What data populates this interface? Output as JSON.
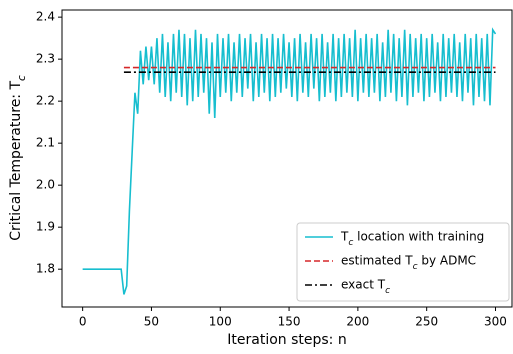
{
  "chart_data": {
    "type": "line",
    "xlabel": "Iteration steps: n",
    "ylabel": "Critical Temperature: Tc",
    "xlim": [
      -15,
      312
    ],
    "ylim": [
      1.71,
      2.417
    ],
    "xticks": [
      0,
      50,
      100,
      150,
      200,
      250,
      300
    ],
    "yticks": [
      1.8,
      1.9,
      {
        "value": 2,
        "label": "2.0"
      },
      2.1,
      2.2,
      2.3,
      2.4
    ],
    "legend": "lower right",
    "series": [
      {
        "name": "Tc location with training",
        "color": "#17becf",
        "dash": "solid",
        "x": [
          0,
          2,
          4,
          6,
          8,
          10,
          12,
          14,
          16,
          18,
          20,
          22,
          24,
          26,
          28,
          30,
          32,
          34,
          36,
          38,
          40,
          42,
          44,
          46,
          48,
          50,
          52,
          54,
          56,
          58,
          60,
          62,
          64,
          66,
          68,
          70,
          72,
          74,
          76,
          78,
          80,
          82,
          84,
          86,
          88,
          90,
          92,
          94,
          96,
          98,
          100,
          102,
          104,
          106,
          108,
          110,
          112,
          114,
          116,
          118,
          120,
          122,
          124,
          126,
          128,
          130,
          132,
          134,
          136,
          138,
          140,
          142,
          144,
          146,
          148,
          150,
          152,
          154,
          156,
          158,
          160,
          162,
          164,
          166,
          168,
          170,
          172,
          174,
          176,
          178,
          180,
          182,
          184,
          186,
          188,
          190,
          192,
          194,
          196,
          198,
          200,
          202,
          204,
          206,
          208,
          210,
          212,
          214,
          216,
          218,
          220,
          222,
          224,
          226,
          228,
          230,
          232,
          234,
          236,
          238,
          240,
          242,
          244,
          246,
          248,
          250,
          252,
          254,
          256,
          258,
          260,
          262,
          264,
          266,
          268,
          270,
          272,
          274,
          276,
          278,
          280,
          282,
          284,
          286,
          288,
          290,
          292,
          294,
          296,
          298,
          300
        ],
        "values": [
          1.8,
          1.8,
          1.8,
          1.8,
          1.8,
          1.8,
          1.8,
          1.8,
          1.8,
          1.8,
          1.8,
          1.8,
          1.8,
          1.8,
          1.8,
          1.74,
          1.76,
          1.94,
          2.08,
          2.22,
          2.17,
          2.32,
          2.24,
          2.33,
          2.25,
          2.33,
          2.24,
          2.35,
          2.22,
          2.36,
          2.21,
          2.34,
          2.2,
          2.36,
          2.22,
          2.37,
          2.21,
          2.36,
          2.19,
          2.35,
          2.2,
          2.37,
          2.21,
          2.36,
          2.22,
          2.35,
          2.17,
          2.34,
          2.16,
          2.36,
          2.21,
          2.35,
          2.22,
          2.36,
          2.2,
          2.34,
          2.22,
          2.36,
          2.21,
          2.35,
          2.23,
          2.36,
          2.2,
          2.34,
          2.21,
          2.36,
          2.22,
          2.35,
          2.2,
          2.36,
          2.21,
          2.35,
          2.22,
          2.36,
          2.23,
          2.34,
          2.21,
          2.35,
          2.2,
          2.36,
          2.22,
          2.34,
          2.21,
          2.36,
          2.23,
          2.35,
          2.2,
          2.36,
          2.21,
          2.34,
          2.22,
          2.36,
          2.2,
          2.35,
          2.21,
          2.36,
          2.22,
          2.35,
          2.21,
          2.37,
          2.2,
          2.35,
          2.22,
          2.36,
          2.21,
          2.35,
          2.22,
          2.36,
          2.2,
          2.34,
          2.21,
          2.37,
          2.22,
          2.36,
          2.2,
          2.35,
          2.21,
          2.37,
          2.19,
          2.36,
          2.21,
          2.35,
          2.22,
          2.36,
          2.2,
          2.35,
          2.21,
          2.36,
          2.22,
          2.34,
          2.2,
          2.36,
          2.21,
          2.35,
          2.22,
          2.36,
          2.21,
          2.34,
          2.2,
          2.36,
          2.22,
          2.35,
          2.19,
          2.36,
          2.21,
          2.35,
          2.2,
          2.36,
          2.19,
          2.37,
          2.36
        ]
      },
      {
        "name": "estimated Tc by ADMC",
        "color": "#d62728",
        "dash": "dashed",
        "x": [
          30,
          300
        ],
        "values": [
          2.28,
          2.28
        ]
      },
      {
        "name": "exact Tc",
        "color": "#000000",
        "dash": "dashdot",
        "x": [
          30,
          300
        ],
        "values": [
          2.269,
          2.269
        ]
      }
    ]
  }
}
